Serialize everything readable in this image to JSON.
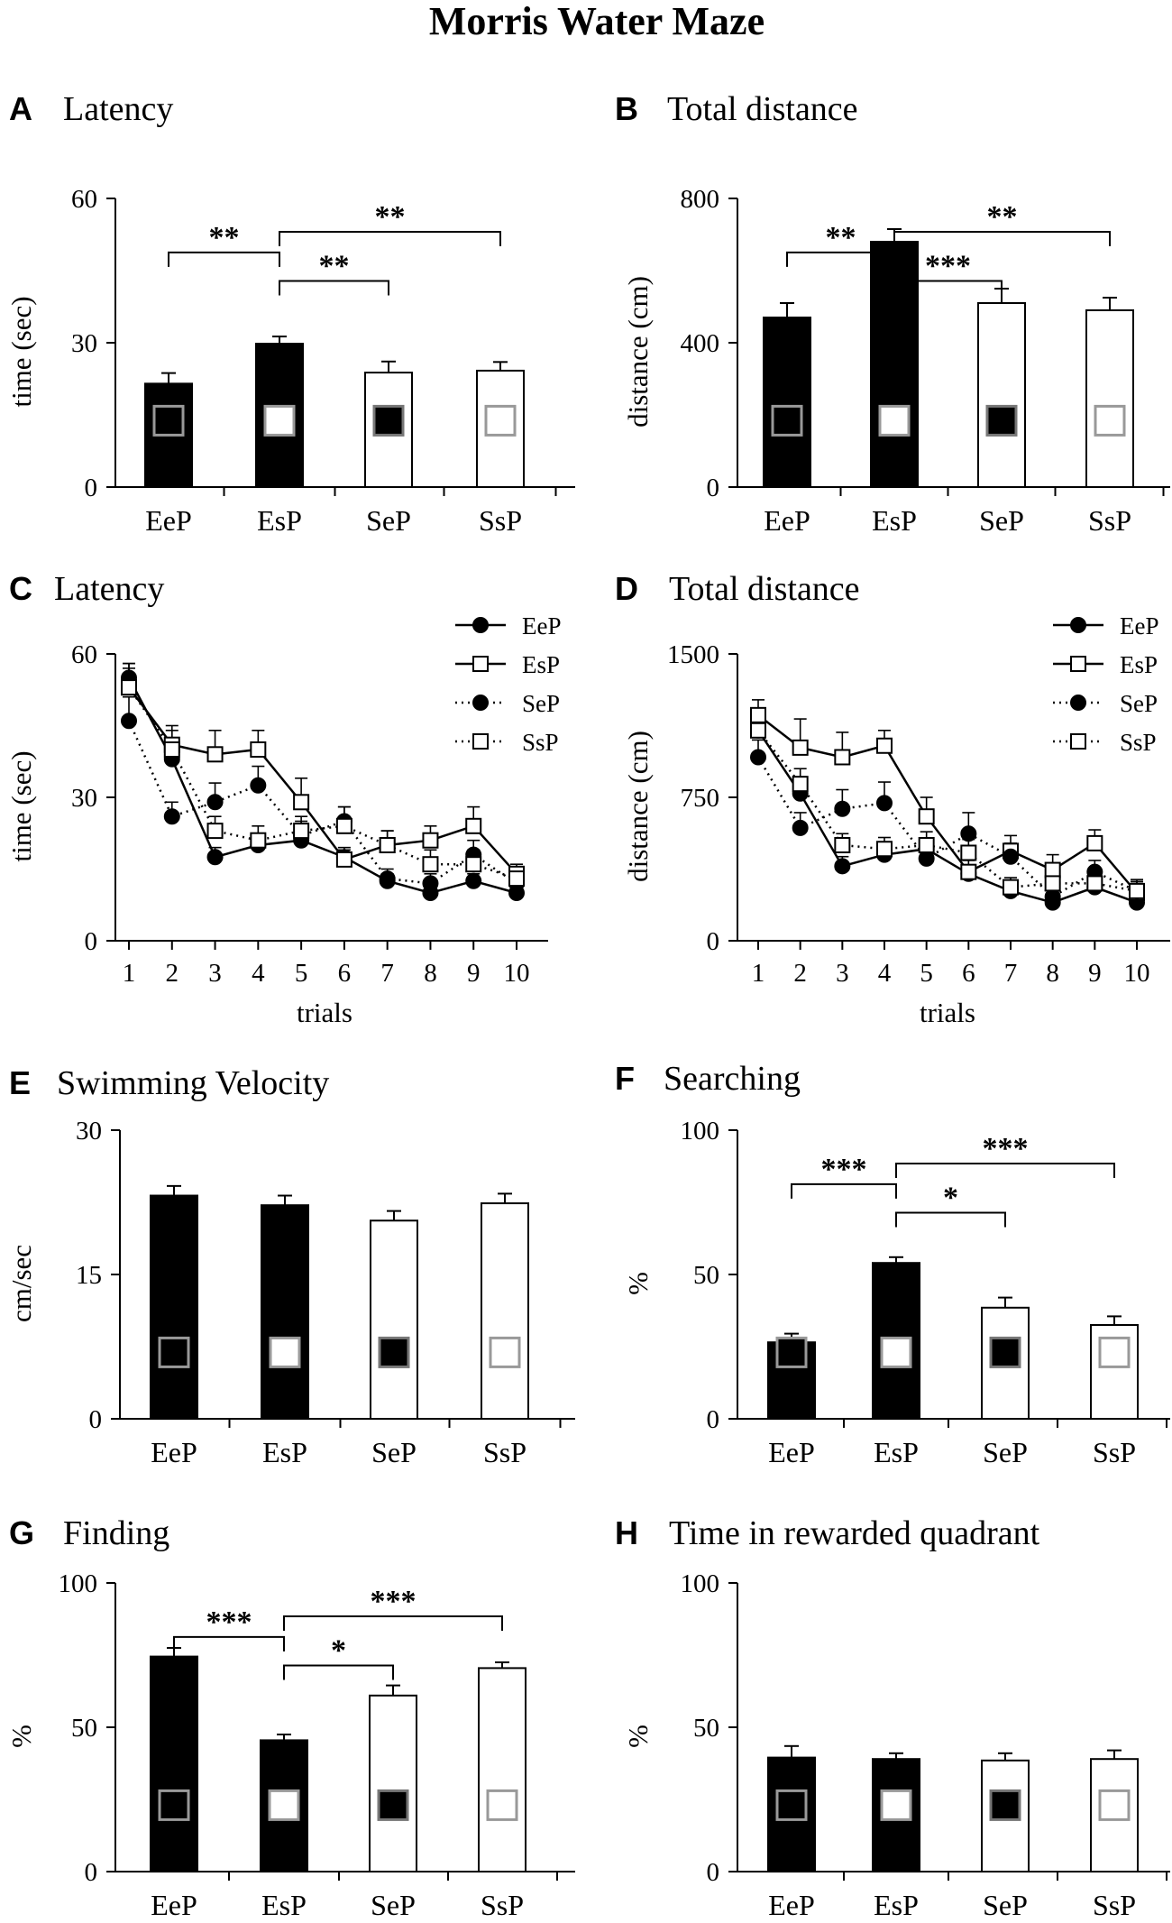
{
  "figure_title": "Morris Water Maze",
  "chart_data": [
    {
      "panel": "A",
      "type": "bar",
      "title": "Latency",
      "ylabel": "time (sec)",
      "categories": [
        "EeP",
        "EsP",
        "SeP",
        "SsP"
      ],
      "values": [
        21.5,
        29.8,
        23.8,
        24.2
      ],
      "errors": [
        2.2,
        1.5,
        2.3,
        1.8
      ],
      "ylim": [
        0,
        60
      ],
      "yticks": [
        0,
        30,
        60
      ],
      "significance": [
        {
          "from": 0,
          "to": 1,
          "label": "**"
        },
        {
          "from": 1,
          "to": 2,
          "label": "**"
        },
        {
          "from": 1,
          "to": 3,
          "label": "**"
        }
      ]
    },
    {
      "panel": "B",
      "type": "bar",
      "title": "Total distance",
      "ylabel": "distance (cm)",
      "categories": [
        "EeP",
        "EsP",
        "SeP",
        "SsP"
      ],
      "values": [
        470,
        680,
        510,
        490
      ],
      "errors": [
        40,
        35,
        40,
        35
      ],
      "ylim": [
        0,
        800
      ],
      "yticks": [
        0,
        400,
        800
      ],
      "significance": [
        {
          "from": 0,
          "to": 1,
          "label": "**"
        },
        {
          "from": 1,
          "to": 2,
          "label": "***"
        },
        {
          "from": 1,
          "to": 3,
          "label": "**"
        }
      ]
    },
    {
      "panel": "C",
      "type": "line",
      "title": "Latency",
      "ylabel": "time (sec)",
      "xlabel": "trials",
      "x": [
        1,
        2,
        3,
        4,
        5,
        6,
        7,
        8,
        9,
        10
      ],
      "ylim": [
        0,
        60
      ],
      "yticks": [
        0,
        30,
        60
      ],
      "series": [
        {
          "name": "EeP",
          "values": [
            55,
            38,
            17.5,
            20,
            21,
            17.5,
            12.5,
            10,
            12.5,
            10
          ],
          "errors": [
            3,
            3,
            2,
            2,
            2,
            2,
            1.5,
            1.5,
            1.5,
            1.5
          ]
        },
        {
          "name": "EsP",
          "values": [
            53,
            41,
            39,
            40,
            29,
            17,
            20,
            21,
            24,
            14
          ],
          "errors": [
            4,
            4,
            5,
            4,
            5,
            2,
            3,
            3,
            4,
            2
          ]
        },
        {
          "name": "SeP",
          "values": [
            46,
            26,
            29,
            32.5,
            22,
            25,
            13,
            12,
            18,
            12
          ],
          "errors": [
            5,
            3,
            4,
            4,
            3,
            3,
            2,
            2,
            3,
            2
          ]
        },
        {
          "name": "SsP",
          "values": [
            53,
            40,
            23,
            21,
            23,
            24,
            20,
            16,
            16,
            13
          ],
          "errors": [
            5,
            4,
            3,
            3,
            3,
            4,
            3,
            3,
            3,
            2
          ]
        }
      ]
    },
    {
      "panel": "D",
      "type": "line",
      "title": "Total distance",
      "ylabel": "distance (cm)",
      "xlabel": "trials",
      "x": [
        1,
        2,
        3,
        4,
        5,
        6,
        7,
        8,
        9,
        10
      ],
      "ylim": [
        0,
        1500
      ],
      "yticks": [
        0,
        750,
        1500
      ],
      "series": [
        {
          "name": "EeP",
          "values": [
            1100,
            770,
            390,
            450,
            480,
            350,
            260,
            200,
            280,
            200
          ],
          "errors": [
            60,
            60,
            50,
            40,
            50,
            40,
            30,
            30,
            30,
            30
          ]
        },
        {
          "name": "EsP",
          "values": [
            1180,
            1010,
            960,
            1020,
            650,
            360,
            470,
            370,
            510,
            250
          ],
          "errors": [
            80,
            150,
            130,
            80,
            100,
            60,
            80,
            80,
            70,
            60
          ]
        },
        {
          "name": "SeP",
          "values": [
            960,
            590,
            690,
            720,
            430,
            560,
            440,
            230,
            360,
            260
          ],
          "errors": [
            90,
            80,
            100,
            110,
            60,
            110,
            70,
            60,
            60,
            60
          ]
        },
        {
          "name": "SsP",
          "values": [
            1100,
            820,
            500,
            480,
            500,
            460,
            280,
            300,
            300,
            260
          ],
          "errors": [
            90,
            80,
            60,
            60,
            70,
            70,
            50,
            50,
            50,
            40
          ]
        }
      ]
    },
    {
      "panel": "E",
      "type": "bar",
      "title": "Swimming Velocity",
      "ylabel": "cm/sec",
      "categories": [
        "EeP",
        "EsP",
        "SeP",
        "SsP"
      ],
      "values": [
        23.2,
        22.2,
        20.6,
        22.4
      ],
      "errors": [
        1.0,
        1.0,
        1.0,
        1.0
      ],
      "ylim": [
        0,
        30
      ],
      "yticks": [
        0,
        15,
        30
      ],
      "significance": []
    },
    {
      "panel": "F",
      "type": "bar",
      "title": "Searching",
      "ylabel": "%",
      "categories": [
        "EeP",
        "EsP",
        "SeP",
        "SsP"
      ],
      "values": [
        26.5,
        54,
        38.5,
        32.5
      ],
      "errors": [
        3,
        2,
        3.5,
        3
      ],
      "ylim": [
        0,
        100
      ],
      "yticks": [
        0,
        50,
        100
      ],
      "significance": [
        {
          "from": 0,
          "to": 1,
          "label": "***"
        },
        {
          "from": 1,
          "to": 2,
          "label": "*"
        },
        {
          "from": 1,
          "to": 3,
          "label": "***"
        }
      ]
    },
    {
      "panel": "G",
      "type": "bar",
      "title": "Finding",
      "ylabel": "%",
      "categories": [
        "EeP",
        "EsP",
        "SeP",
        "SsP"
      ],
      "values": [
        74.5,
        45.5,
        61,
        70.5
      ],
      "errors": [
        3,
        2,
        3.5,
        2
      ],
      "ylim": [
        0,
        100
      ],
      "yticks": [
        0,
        50,
        100
      ],
      "significance": [
        {
          "from": 0,
          "to": 1,
          "label": "***"
        },
        {
          "from": 1,
          "to": 2,
          "label": "*"
        },
        {
          "from": 1,
          "to": 3,
          "label": "***"
        }
      ]
    },
    {
      "panel": "H",
      "type": "bar",
      "title": "Time in rewarded quadrant",
      "ylabel": "%",
      "categories": [
        "EeP",
        "EsP",
        "SeP",
        "SsP"
      ],
      "values": [
        39.5,
        39,
        38.5,
        39
      ],
      "errors": [
        4,
        2,
        2.5,
        3
      ],
      "ylim": [
        0,
        100
      ],
      "yticks": [
        0,
        50,
        100
      ],
      "significance": []
    }
  ]
}
